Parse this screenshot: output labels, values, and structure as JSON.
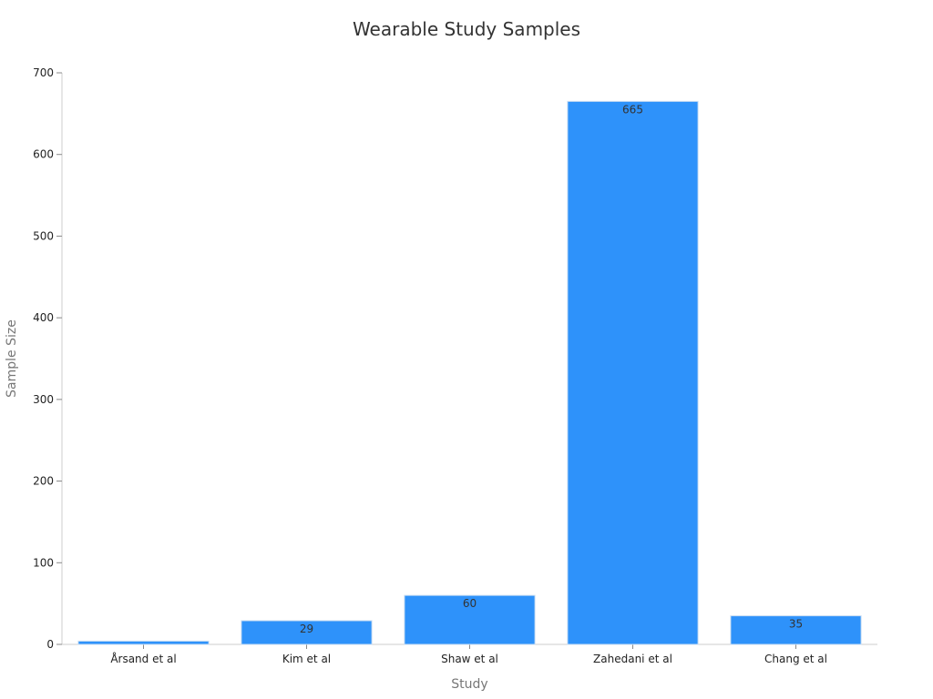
{
  "chart_data": {
    "type": "bar",
    "title": "Wearable Study Samples",
    "xlabel": "Study",
    "ylabel": "Sample Size",
    "categories": [
      "Årsand et al",
      "Kim et al",
      "Shaw et al",
      "Zahedani et al",
      "Chang et al"
    ],
    "values": [
      4,
      29,
      60,
      665,
      35
    ],
    "data_labels": [
      "",
      "29",
      "60",
      "665",
      "35"
    ],
    "ylim": [
      0,
      700
    ],
    "yticks": [
      0,
      100,
      200,
      300,
      400,
      500,
      600,
      700
    ],
    "grid": false,
    "bar_color": "#2e92fa"
  }
}
